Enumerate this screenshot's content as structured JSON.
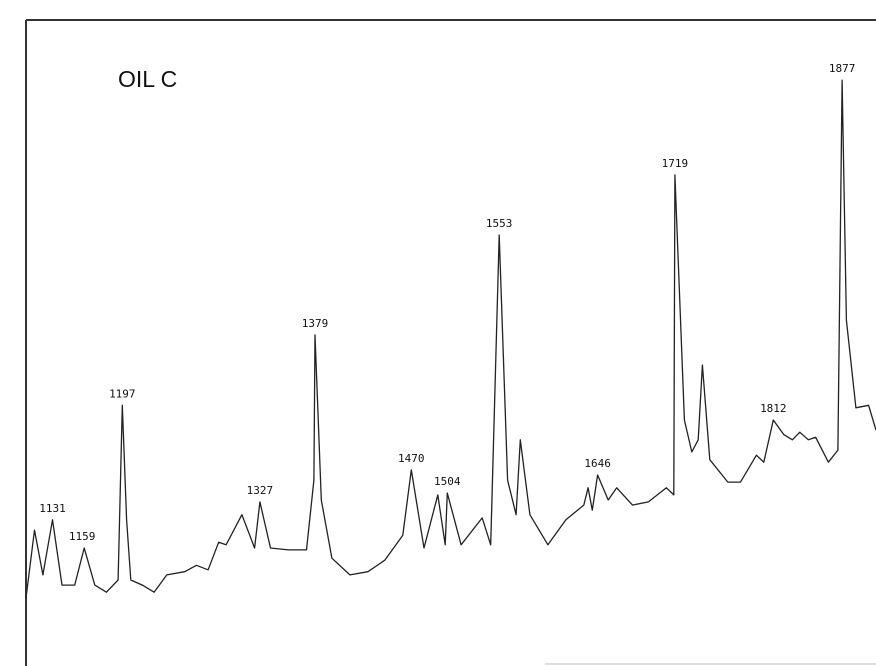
{
  "chart_data": {
    "type": "line",
    "title": "OIL C",
    "series": [
      {
        "color": "#222222",
        "x": [
          1106,
          1114,
          1122,
          1131,
          1140,
          1152,
          1161,
          1171,
          1182,
          1193,
          1197,
          1201,
          1205,
          1216,
          1227,
          1239,
          1256,
          1267,
          1278,
          1288,
          1295,
          1310,
          1322,
          1327,
          1337,
          1354,
          1371,
          1378,
          1379,
          1385,
          1395,
          1412,
          1429,
          1445,
          1462,
          1470,
          1482,
          1495,
          1502,
          1504,
          1517,
          1537,
          1545,
          1553,
          1561,
          1569,
          1573,
          1582,
          1599,
          1616,
          1633,
          1637,
          1641,
          1646,
          1656,
          1664,
          1679,
          1694,
          1711,
          1718,
          1719,
          1728,
          1735,
          1741,
          1745,
          1752,
          1769,
          1781,
          1796,
          1803,
          1812,
          1822,
          1830,
          1837,
          1845,
          1852,
          1864,
          1873,
          1877,
          1881,
          1890,
          1902,
          1909
        ],
        "values": [
          9.7,
          20.3,
          13.3,
          21.9,
          11.7,
          11.7,
          17.5,
          11.7,
          10.6,
          12.5,
          39.8,
          21.9,
          12.5,
          11.7,
          10.6,
          13.3,
          13.8,
          14.8,
          14.1,
          18.4,
          18.0,
          22.7,
          17.5,
          24.7,
          17.5,
          17.2,
          17.2,
          28.1,
          50.8,
          25.0,
          15.9,
          13.3,
          13.8,
          15.6,
          19.5,
          29.7,
          17.5,
          25.8,
          18.0,
          26.1,
          18.0,
          22.2,
          18.0,
          66.4,
          28.1,
          22.7,
          34.4,
          22.7,
          18.0,
          21.9,
          24.2,
          26.9,
          23.4,
          28.9,
          25.0,
          26.9,
          24.2,
          24.7,
          26.9,
          25.8,
          75.8,
          37.5,
          32.5,
          34.4,
          46.1,
          31.3,
          27.8,
          27.8,
          32.0,
          30.9,
          37.5,
          35.2,
          34.4,
          35.6,
          34.4,
          34.8,
          30.9,
          32.8,
          90.6,
          53.1,
          39.4,
          39.8,
          35.9
        ]
      }
    ],
    "peaks": [
      1131,
      1159,
      1197,
      1327,
      1379,
      1470,
      1504,
      1553,
      1646,
      1719,
      1812,
      1877
    ],
    "xlim": [
      1106,
      1909
    ],
    "ylim": [
      0,
      100
    ]
  }
}
